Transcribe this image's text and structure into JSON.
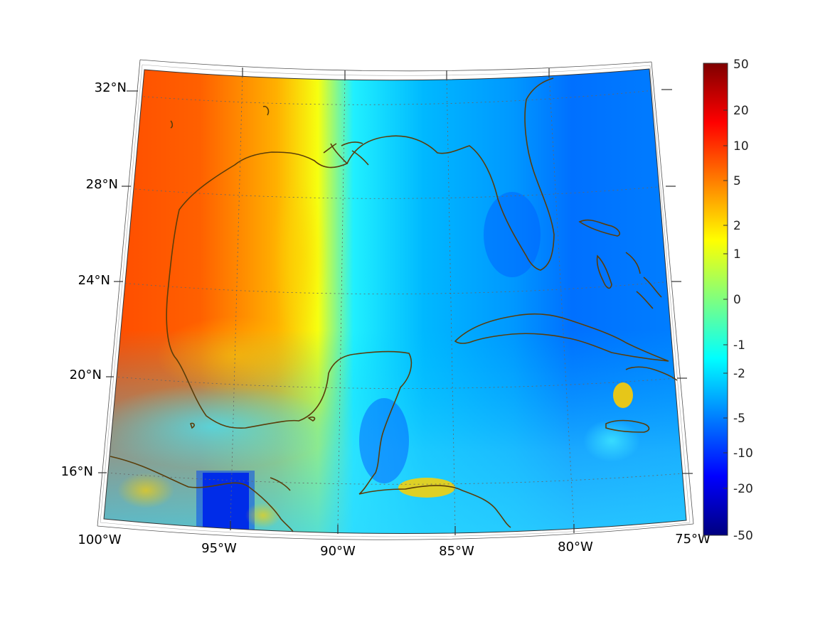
{
  "map": {
    "region": "Gulf of Mexico and Caribbean",
    "projection": "conic",
    "lon_labels": [
      "100°W",
      "95°W",
      "90°W",
      "85°W",
      "80°W",
      "75°W"
    ],
    "lat_labels": [
      "32°N",
      "28°N",
      "24°N",
      "20°N",
      "16°N"
    ],
    "coastline_color": "#5a3d0a",
    "field": {
      "west_value": "positive (orange-red)",
      "east_value": "negative (blue)",
      "notable_features": [
        "positive band along Texas/Louisiana coast",
        "strong negative patch near 95°W 15°N",
        "small positive patch off Honduras near 86°W",
        "positive patch near western Hispaniola"
      ]
    }
  },
  "colorbar": {
    "labels": [
      "50",
      "20",
      "10",
      "5",
      "2",
      "1",
      "0",
      "-1",
      "-2",
      "-5",
      "-10",
      "-20",
      "-50"
    ],
    "colormap": "jet",
    "top_color": "#7f0000",
    "bottom_color": "#00007f"
  }
}
